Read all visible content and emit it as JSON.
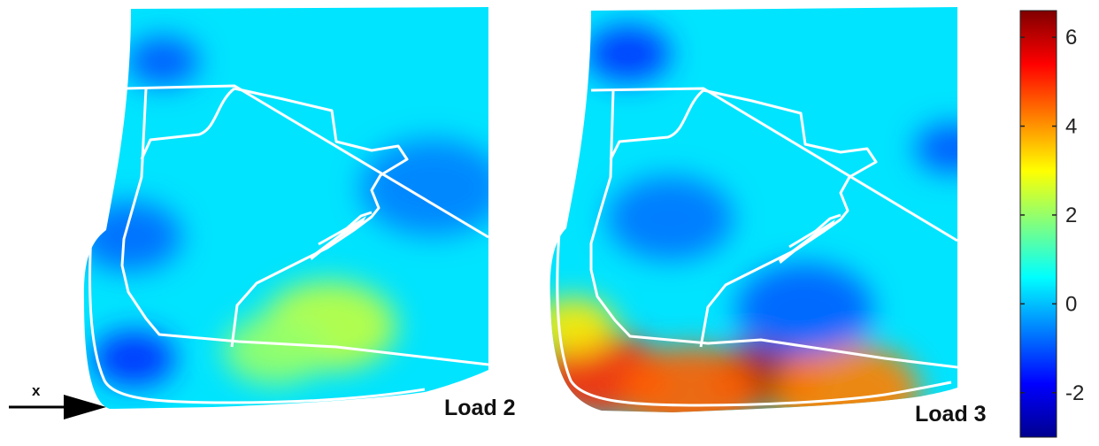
{
  "chart_data": {
    "type": "heatmap",
    "colormap": "jet",
    "color_range": [
      -3,
      6.6
    ],
    "colorbar_ticks": [
      6,
      4,
      2,
      0,
      -2
    ],
    "panels": [
      {
        "label": "Load 2",
        "background_value": 0.0,
        "hotspots": [
          {
            "value": 2.4,
            "nx": 0.6,
            "ny": 0.79,
            "r": 0.13
          },
          {
            "value": 2.0,
            "nx": 0.47,
            "ny": 0.85,
            "r": 0.1
          },
          {
            "value": -1.4,
            "nx": 0.13,
            "ny": 0.87,
            "r": 0.08
          },
          {
            "value": -1.0,
            "nx": 0.2,
            "ny": 0.14,
            "r": 0.07
          },
          {
            "value": -0.8,
            "nx": 0.12,
            "ny": 0.57,
            "r": 0.1
          },
          {
            "value": -0.6,
            "nx": 0.85,
            "ny": 0.45,
            "r": 0.14
          }
        ]
      },
      {
        "label": "Load 3",
        "background_value": 0.0,
        "hotspots": [
          {
            "value": 6.4,
            "nx": 0.53,
            "ny": 0.9,
            "r": 0.1
          },
          {
            "value": 5.0,
            "nx": 0.14,
            "ny": 0.9,
            "r": 0.12
          },
          {
            "value": 4.5,
            "nx": 0.35,
            "ny": 0.94,
            "r": 0.13
          },
          {
            "value": 4.2,
            "nx": 0.72,
            "ny": 0.94,
            "r": 0.14
          },
          {
            "value": 3.2,
            "nx": 0.07,
            "ny": 0.78,
            "r": 0.08
          },
          {
            "value": -1.3,
            "nx": 0.2,
            "ny": 0.12,
            "r": 0.08
          },
          {
            "value": -1.0,
            "nx": 0.97,
            "ny": 0.35,
            "r": 0.07
          },
          {
            "value": -0.9,
            "nx": 0.62,
            "ny": 0.74,
            "r": 0.13
          },
          {
            "value": -0.7,
            "nx": 0.3,
            "ny": 0.52,
            "r": 0.12
          }
        ]
      }
    ]
  },
  "axis_arrow": {
    "label": "x"
  }
}
